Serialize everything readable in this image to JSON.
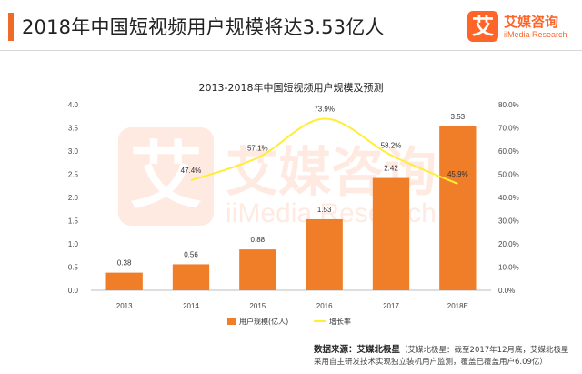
{
  "header": {
    "title": "2018年中国短视频用户规模将达3.53亿人",
    "logo_mark": "艾",
    "logo_name": "艾媒咨询",
    "logo_sub": "iiMedia Research"
  },
  "watermark": {
    "mark": "艾",
    "name": "艾媒咨询",
    "sub": "iiMedia Research"
  },
  "chart_data": {
    "type": "bar",
    "title": "2013-2018年中国短视频用户规模及预测",
    "categories": [
      "2013",
      "2014",
      "2015",
      "2016",
      "2017",
      "2018E"
    ],
    "series": [
      {
        "name": "用户规模(亿人)",
        "type": "bar",
        "axis": "left",
        "values": [
          0.38,
          0.56,
          0.88,
          1.53,
          2.42,
          3.53
        ],
        "labels": [
          "0.38",
          "0.56",
          "0.88",
          "1.53",
          "2.42",
          "3.53"
        ],
        "color": "#f07d28"
      },
      {
        "name": "增长率",
        "type": "line",
        "axis": "right",
        "values": [
          null,
          47.4,
          57.1,
          73.9,
          58.2,
          45.9
        ],
        "labels": [
          "",
          "47.4%",
          "57.1%",
          "73.9%",
          "58.2%",
          "45.9%"
        ],
        "color": "#ffee33"
      }
    ],
    "left_axis": {
      "min": 0,
      "max": 4.0,
      "ticks": [
        "0.0",
        "0.5",
        "1.0",
        "1.5",
        "2.0",
        "2.5",
        "3.0",
        "3.5",
        "4.0"
      ]
    },
    "right_axis": {
      "min": 0,
      "max": 80,
      "ticks": [
        "0.0%",
        "10.0%",
        "20.0%",
        "30.0%",
        "40.0%",
        "50.0%",
        "60.0%",
        "70.0%",
        "80.0%"
      ]
    },
    "grid": false,
    "legend": "bottom"
  },
  "source": {
    "label": "数据来源：",
    "brand": "艾媒北极星",
    "note1": "（艾媒北极星：截至2017年12月底，艾媒北极星",
    "note2": "采用自主研发技术实现独立装机用户监测，覆盖已覆盖用户6.09亿）"
  },
  "colors": {
    "accent": "#f06a2a",
    "bar": "#f07d28",
    "line": "#ffee33"
  }
}
